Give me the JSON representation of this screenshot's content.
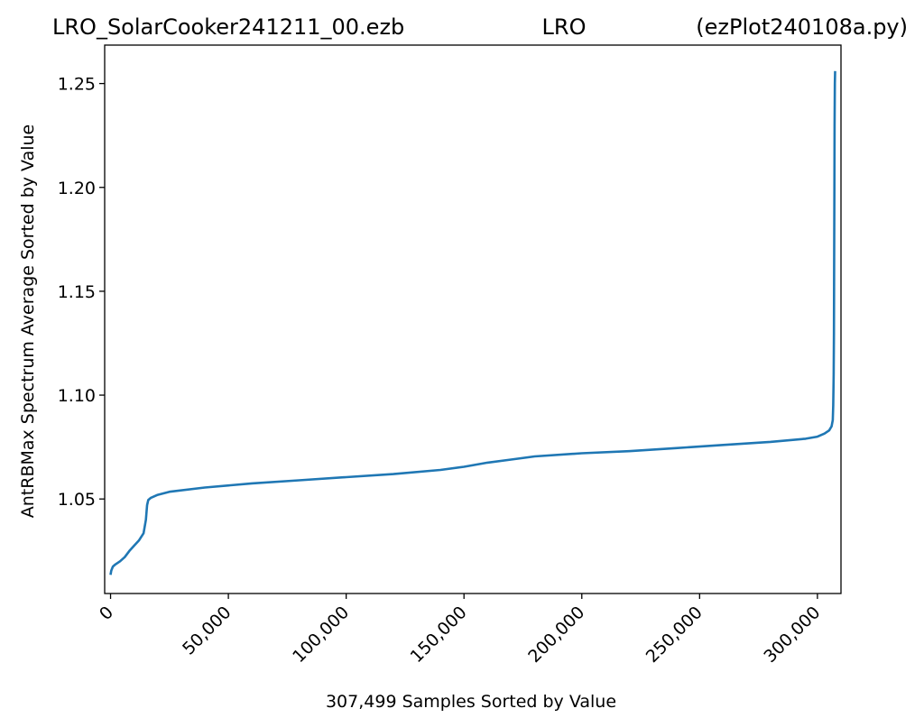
{
  "chart_data": {
    "type": "line",
    "title_left": "LRO_SolarCooker241211_00.ezb",
    "title_center": "LRO",
    "title_right": "(ezPlot240108a.py)",
    "xlabel": "307,499 Samples Sorted by Value",
    "ylabel": "AntRBMax Spectrum Average Sorted by Value",
    "xlim": [
      -2500,
      310000
    ],
    "ylim": [
      1.0045,
      1.2685
    ],
    "xticks": [
      0,
      50000,
      100000,
      150000,
      200000,
      250000,
      300000
    ],
    "xtick_labels": [
      "0",
      "50,000",
      "100,000",
      "150,000",
      "200,000",
      "250,000",
      "300,000"
    ],
    "yticks": [
      1.05,
      1.1,
      1.15,
      1.2,
      1.25
    ],
    "ytick_labels": [
      "1.05",
      "1.10",
      "1.15",
      "1.20",
      "1.25"
    ],
    "grid": false,
    "series": [
      {
        "color": "#1f77b4",
        "x": [
          0,
          300,
          1000,
          2000,
          4000,
          6000,
          8000,
          10000,
          12000,
          14000,
          15000,
          15500,
          16000,
          17000,
          20000,
          25000,
          40000,
          60000,
          80000,
          100000,
          120000,
          140000,
          150000,
          160000,
          170000,
          180000,
          200000,
          220000,
          240000,
          260000,
          280000,
          295000,
          300000,
          303000,
          305000,
          306000,
          306500,
          306700,
          306900,
          307000,
          307100,
          307200,
          307300,
          307400,
          307499
        ],
        "values": [
          1.0135,
          1.0155,
          1.0175,
          1.0185,
          1.02,
          1.022,
          1.025,
          1.0275,
          1.03,
          1.0335,
          1.04,
          1.047,
          1.0495,
          1.0505,
          1.052,
          1.0535,
          1.0555,
          1.0575,
          1.059,
          1.0605,
          1.062,
          1.064,
          1.0655,
          1.0675,
          1.069,
          1.0705,
          1.072,
          1.073,
          1.0745,
          1.076,
          1.0775,
          1.079,
          1.08,
          1.0815,
          1.083,
          1.085,
          1.088,
          1.095,
          1.11,
          1.13,
          1.16,
          1.2,
          1.23,
          1.25,
          1.256
        ]
      }
    ]
  }
}
